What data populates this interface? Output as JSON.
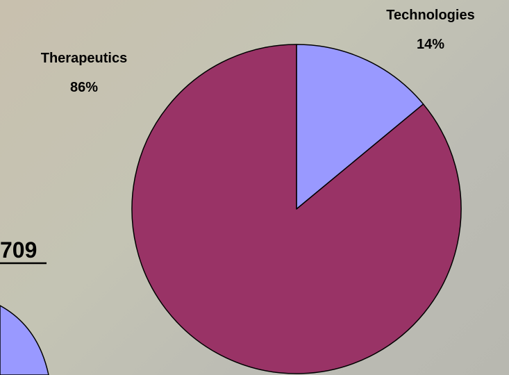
{
  "chart_data": {
    "type": "pie",
    "categories": [
      "Technologies",
      "Therapeutics"
    ],
    "values": [
      14,
      86
    ],
    "data_labels": [
      "Technologies",
      "14%",
      "Therapeutics",
      "86%"
    ],
    "title": "",
    "colors": {
      "Technologies": "#9999ff",
      "Therapeutics": "#993366",
      "outline": "#000000"
    },
    "start_angle": "12 o'clock",
    "direction": "clockwise",
    "grid": false,
    "legend": "none"
  },
  "fragments": {
    "cropped_text": "709",
    "cropped_pie_color": "#9999ff"
  }
}
